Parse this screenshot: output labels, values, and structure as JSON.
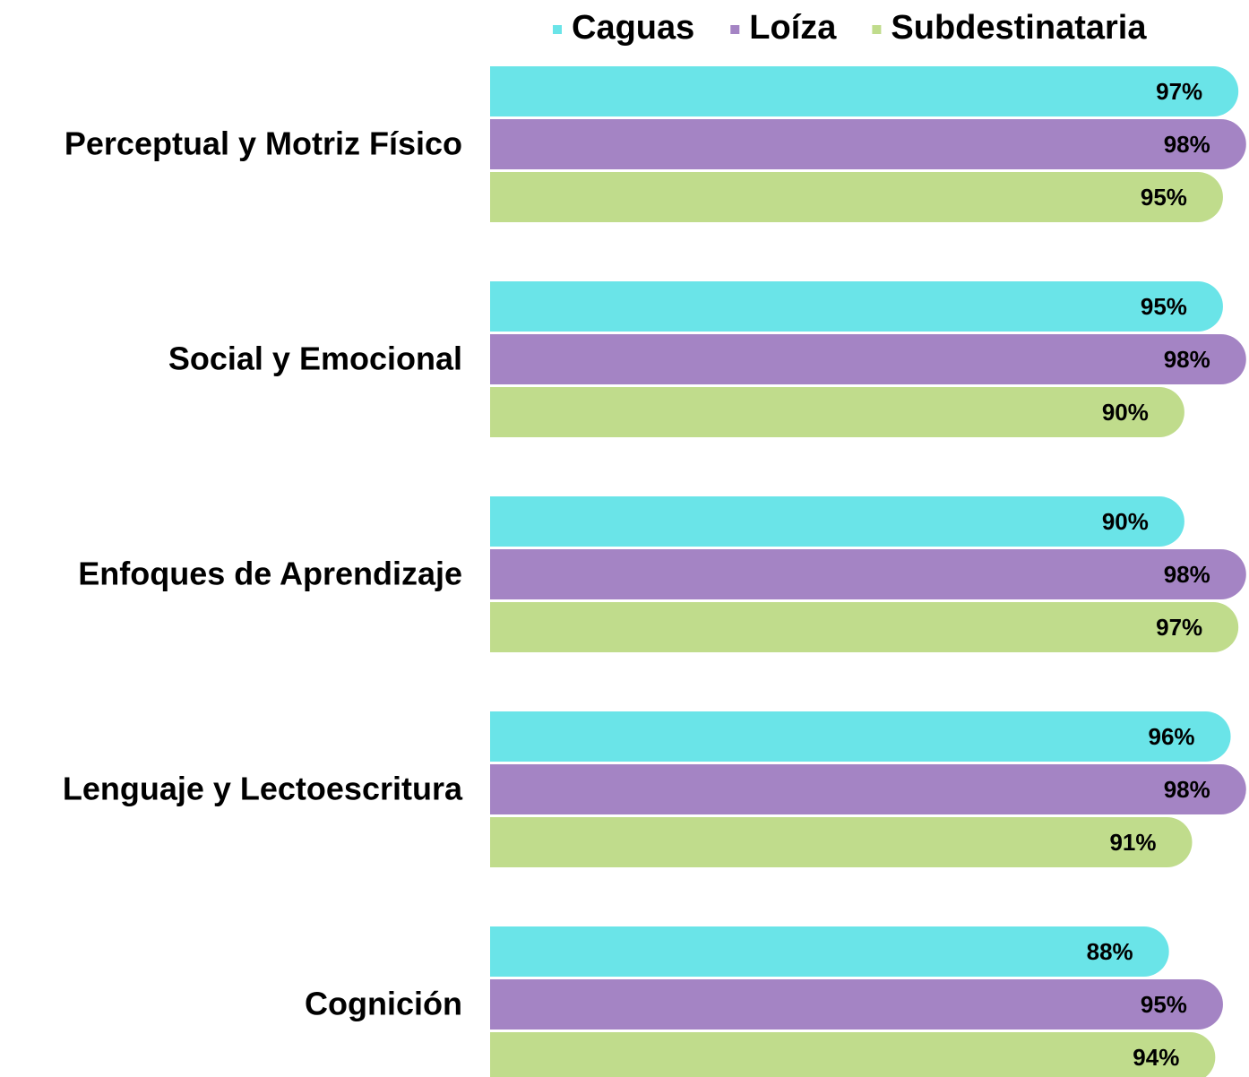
{
  "chart_data": {
    "type": "bar",
    "orientation": "horizontal",
    "categories": [
      "Perceptual y Motriz Físico",
      "Social y Emocional",
      "Enfoques de Aprendizaje",
      "Lenguaje y Lectoescritura",
      "Cognición"
    ],
    "series": [
      {
        "name": "Caguas",
        "color": "#6ae4e8",
        "values": [
          97,
          95,
          90,
          96,
          88
        ],
        "value_labels": [
          "97%",
          "95%",
          "90%",
          "96%",
          "88%"
        ]
      },
      {
        "name": "Loíza",
        "color": "#a484c4",
        "values": [
          98,
          98,
          98,
          98,
          95
        ],
        "value_labels": [
          "98%",
          "98%",
          "98%",
          "98%",
          "95%"
        ]
      },
      {
        "name": "Subdestinataria",
        "color": "#c0dc8c",
        "values": [
          95,
          90,
          97,
          91,
          94
        ],
        "value_labels": [
          "95%",
          "90%",
          "97%",
          "91%",
          "94%"
        ]
      }
    ],
    "xlim": [
      0,
      100
    ],
    "legend": "top"
  }
}
